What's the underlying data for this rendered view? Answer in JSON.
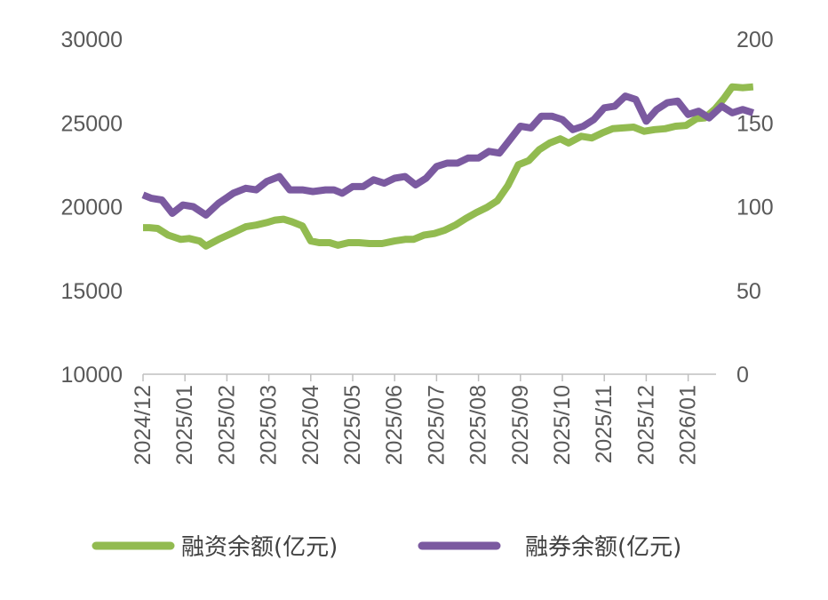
{
  "chart_data": {
    "type": "line",
    "x_categories": [
      "2024/12",
      "2025/01",
      "2025/02",
      "2025/03",
      "2025/04",
      "2025/05",
      "2025/06",
      "2025/07",
      "2025/08",
      "2025/09",
      "2025/10",
      "2025/11",
      "2025/12",
      "2026/01"
    ],
    "y_left": {
      "ylim": [
        10000,
        30000
      ],
      "ticks": [
        "30000",
        "25000",
        "20000",
        "15000",
        "10000"
      ]
    },
    "y_right": {
      "ylim": [
        0,
        200
      ],
      "ticks": [
        "200",
        "150",
        "100",
        "50",
        "0"
      ]
    },
    "legend_position": "bottom",
    "grid": false,
    "series": [
      {
        "name": "融资余额(亿元)",
        "axis": "left",
        "color": "#92bb50",
        "points": [
          [
            0.0,
            18750
          ],
          [
            0.15,
            18750
          ],
          [
            0.35,
            18700
          ],
          [
            0.6,
            18300
          ],
          [
            0.9,
            18050
          ],
          [
            1.1,
            18100
          ],
          [
            1.35,
            17950
          ],
          [
            1.5,
            17650
          ],
          [
            1.8,
            18050
          ],
          [
            2.15,
            18450
          ],
          [
            2.45,
            18800
          ],
          [
            2.7,
            18900
          ],
          [
            2.95,
            19050
          ],
          [
            3.15,
            19200
          ],
          [
            3.35,
            19250
          ],
          [
            3.55,
            19100
          ],
          [
            3.8,
            18850
          ],
          [
            4.0,
            17950
          ],
          [
            4.2,
            17850
          ],
          [
            4.45,
            17850
          ],
          [
            4.65,
            17700
          ],
          [
            4.9,
            17850
          ],
          [
            5.15,
            17850
          ],
          [
            5.4,
            17800
          ],
          [
            5.7,
            17800
          ],
          [
            6.0,
            17950
          ],
          [
            6.25,
            18050
          ],
          [
            6.45,
            18050
          ],
          [
            6.7,
            18300
          ],
          [
            6.95,
            18400
          ],
          [
            7.2,
            18600
          ],
          [
            7.45,
            18900
          ],
          [
            7.7,
            19300
          ],
          [
            7.95,
            19650
          ],
          [
            8.2,
            19950
          ],
          [
            8.45,
            20350
          ],
          [
            8.7,
            21250
          ],
          [
            8.95,
            22500
          ],
          [
            9.2,
            22750
          ],
          [
            9.45,
            23400
          ],
          [
            9.7,
            23800
          ],
          [
            9.95,
            24050
          ],
          [
            10.15,
            23800
          ],
          [
            10.45,
            24200
          ],
          [
            10.7,
            24100
          ],
          [
            10.95,
            24400
          ],
          [
            11.2,
            24650
          ],
          [
            11.45,
            24700
          ],
          [
            11.7,
            24750
          ],
          [
            11.95,
            24500
          ],
          [
            12.2,
            24600
          ],
          [
            12.45,
            24650
          ],
          [
            12.7,
            24800
          ],
          [
            12.95,
            24850
          ],
          [
            13.2,
            25250
          ],
          [
            13.4,
            25300
          ],
          [
            13.65,
            25850
          ],
          [
            13.85,
            26450
          ],
          [
            14.05,
            27150
          ],
          [
            14.3,
            27100
          ],
          [
            14.55,
            27150
          ]
        ]
      },
      {
        "name": "融券余额(亿元)",
        "axis": "right",
        "color": "#7b5aa0",
        "points": [
          [
            0.0,
            107
          ],
          [
            0.2,
            105
          ],
          [
            0.45,
            104
          ],
          [
            0.7,
            96
          ],
          [
            0.95,
            101
          ],
          [
            1.2,
            100
          ],
          [
            1.5,
            95
          ],
          [
            1.8,
            102
          ],
          [
            2.15,
            108
          ],
          [
            2.45,
            111
          ],
          [
            2.7,
            110
          ],
          [
            2.95,
            115
          ],
          [
            3.25,
            118
          ],
          [
            3.5,
            110
          ],
          [
            3.8,
            110
          ],
          [
            4.05,
            109
          ],
          [
            4.35,
            110
          ],
          [
            4.55,
            110
          ],
          [
            4.75,
            108
          ],
          [
            5.0,
            112
          ],
          [
            5.25,
            112
          ],
          [
            5.5,
            116
          ],
          [
            5.75,
            114
          ],
          [
            6.0,
            117
          ],
          [
            6.25,
            118
          ],
          [
            6.5,
            113
          ],
          [
            6.75,
            117
          ],
          [
            7.0,
            124
          ],
          [
            7.25,
            126
          ],
          [
            7.5,
            126
          ],
          [
            7.75,
            129
          ],
          [
            8.0,
            129
          ],
          [
            8.25,
            133
          ],
          [
            8.5,
            132
          ],
          [
            8.75,
            140
          ],
          [
            9.0,
            148
          ],
          [
            9.25,
            147
          ],
          [
            9.5,
            154
          ],
          [
            9.75,
            154
          ],
          [
            10.0,
            152
          ],
          [
            10.25,
            146
          ],
          [
            10.5,
            148
          ],
          [
            10.75,
            152
          ],
          [
            11.0,
            159
          ],
          [
            11.25,
            160
          ],
          [
            11.5,
            166
          ],
          [
            11.75,
            164
          ],
          [
            12.0,
            151
          ],
          [
            12.25,
            158
          ],
          [
            12.5,
            162
          ],
          [
            12.75,
            163
          ],
          [
            13.0,
            155
          ],
          [
            13.25,
            157
          ],
          [
            13.5,
            153
          ],
          [
            13.8,
            160
          ],
          [
            14.05,
            156
          ],
          [
            14.3,
            158
          ],
          [
            14.55,
            156
          ]
        ]
      }
    ]
  }
}
